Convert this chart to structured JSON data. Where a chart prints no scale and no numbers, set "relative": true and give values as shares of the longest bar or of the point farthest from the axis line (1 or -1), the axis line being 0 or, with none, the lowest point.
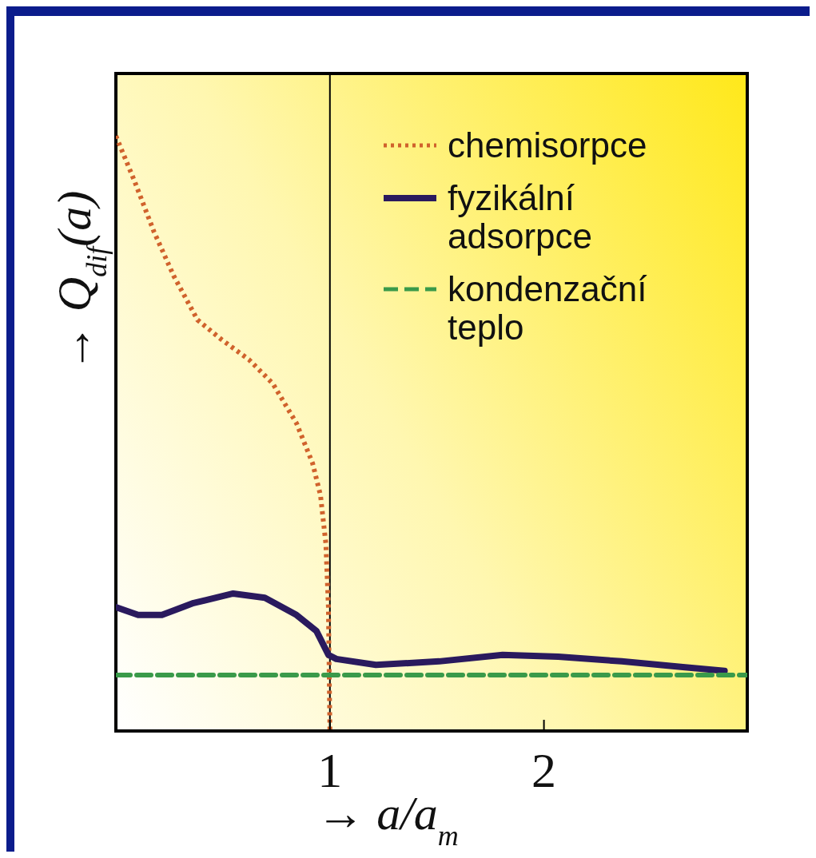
{
  "chart_data": {
    "type": "line",
    "relative": true,
    "xlabel": "→ a/a$_{m}$",
    "ylabel": "→ Q$_{dif}$(a)",
    "xlim": [
      0,
      2.95
    ],
    "xticks": [
      1,
      2
    ],
    "legend": "top right",
    "marker": "none",
    "series": [
      {
        "name": "chemisorpce",
        "color": "#d0622c",
        "line_style": "dotted",
        "x": [
          0,
          0.085,
          0.178,
          0.27,
          0.381,
          0.493,
          0.622,
          0.733,
          0.844,
          0.919,
          0.956,
          0.981,
          0.993,
          1
        ],
        "values": [
          1,
          0.926,
          0.839,
          0.765,
          0.691,
          0.658,
          0.624,
          0.584,
          0.517,
          0.45,
          0.396,
          0.315,
          0.208,
          0
        ]
      },
      {
        "name": "fyzikální adsorpce",
        "color": "#2a1a5e",
        "line_style": "solid",
        "x": [
          0,
          0.104,
          0.215,
          0.363,
          0.548,
          0.696,
          0.844,
          0.937,
          0.993,
          1.03,
          1.215,
          1.511,
          1.807,
          2.067,
          2.363,
          2.659,
          2.844
        ],
        "values": [
          0.208,
          0.195,
          0.195,
          0.215,
          0.231,
          0.224,
          0.195,
          0.168,
          0.128,
          0.121,
          0.111,
          0.117,
          0.128,
          0.125,
          0.117,
          0.107,
          0.101
        ]
      },
      {
        "name": "kondenzační teplo",
        "color": "#3a9a4a",
        "line_style": "dashed",
        "x": [
          0,
          2.95
        ],
        "values": [
          0.094,
          0.094
        ]
      }
    ],
    "ref_lines": [
      {
        "axis": "x",
        "value": 1,
        "color": "#000000"
      }
    ]
  }
}
